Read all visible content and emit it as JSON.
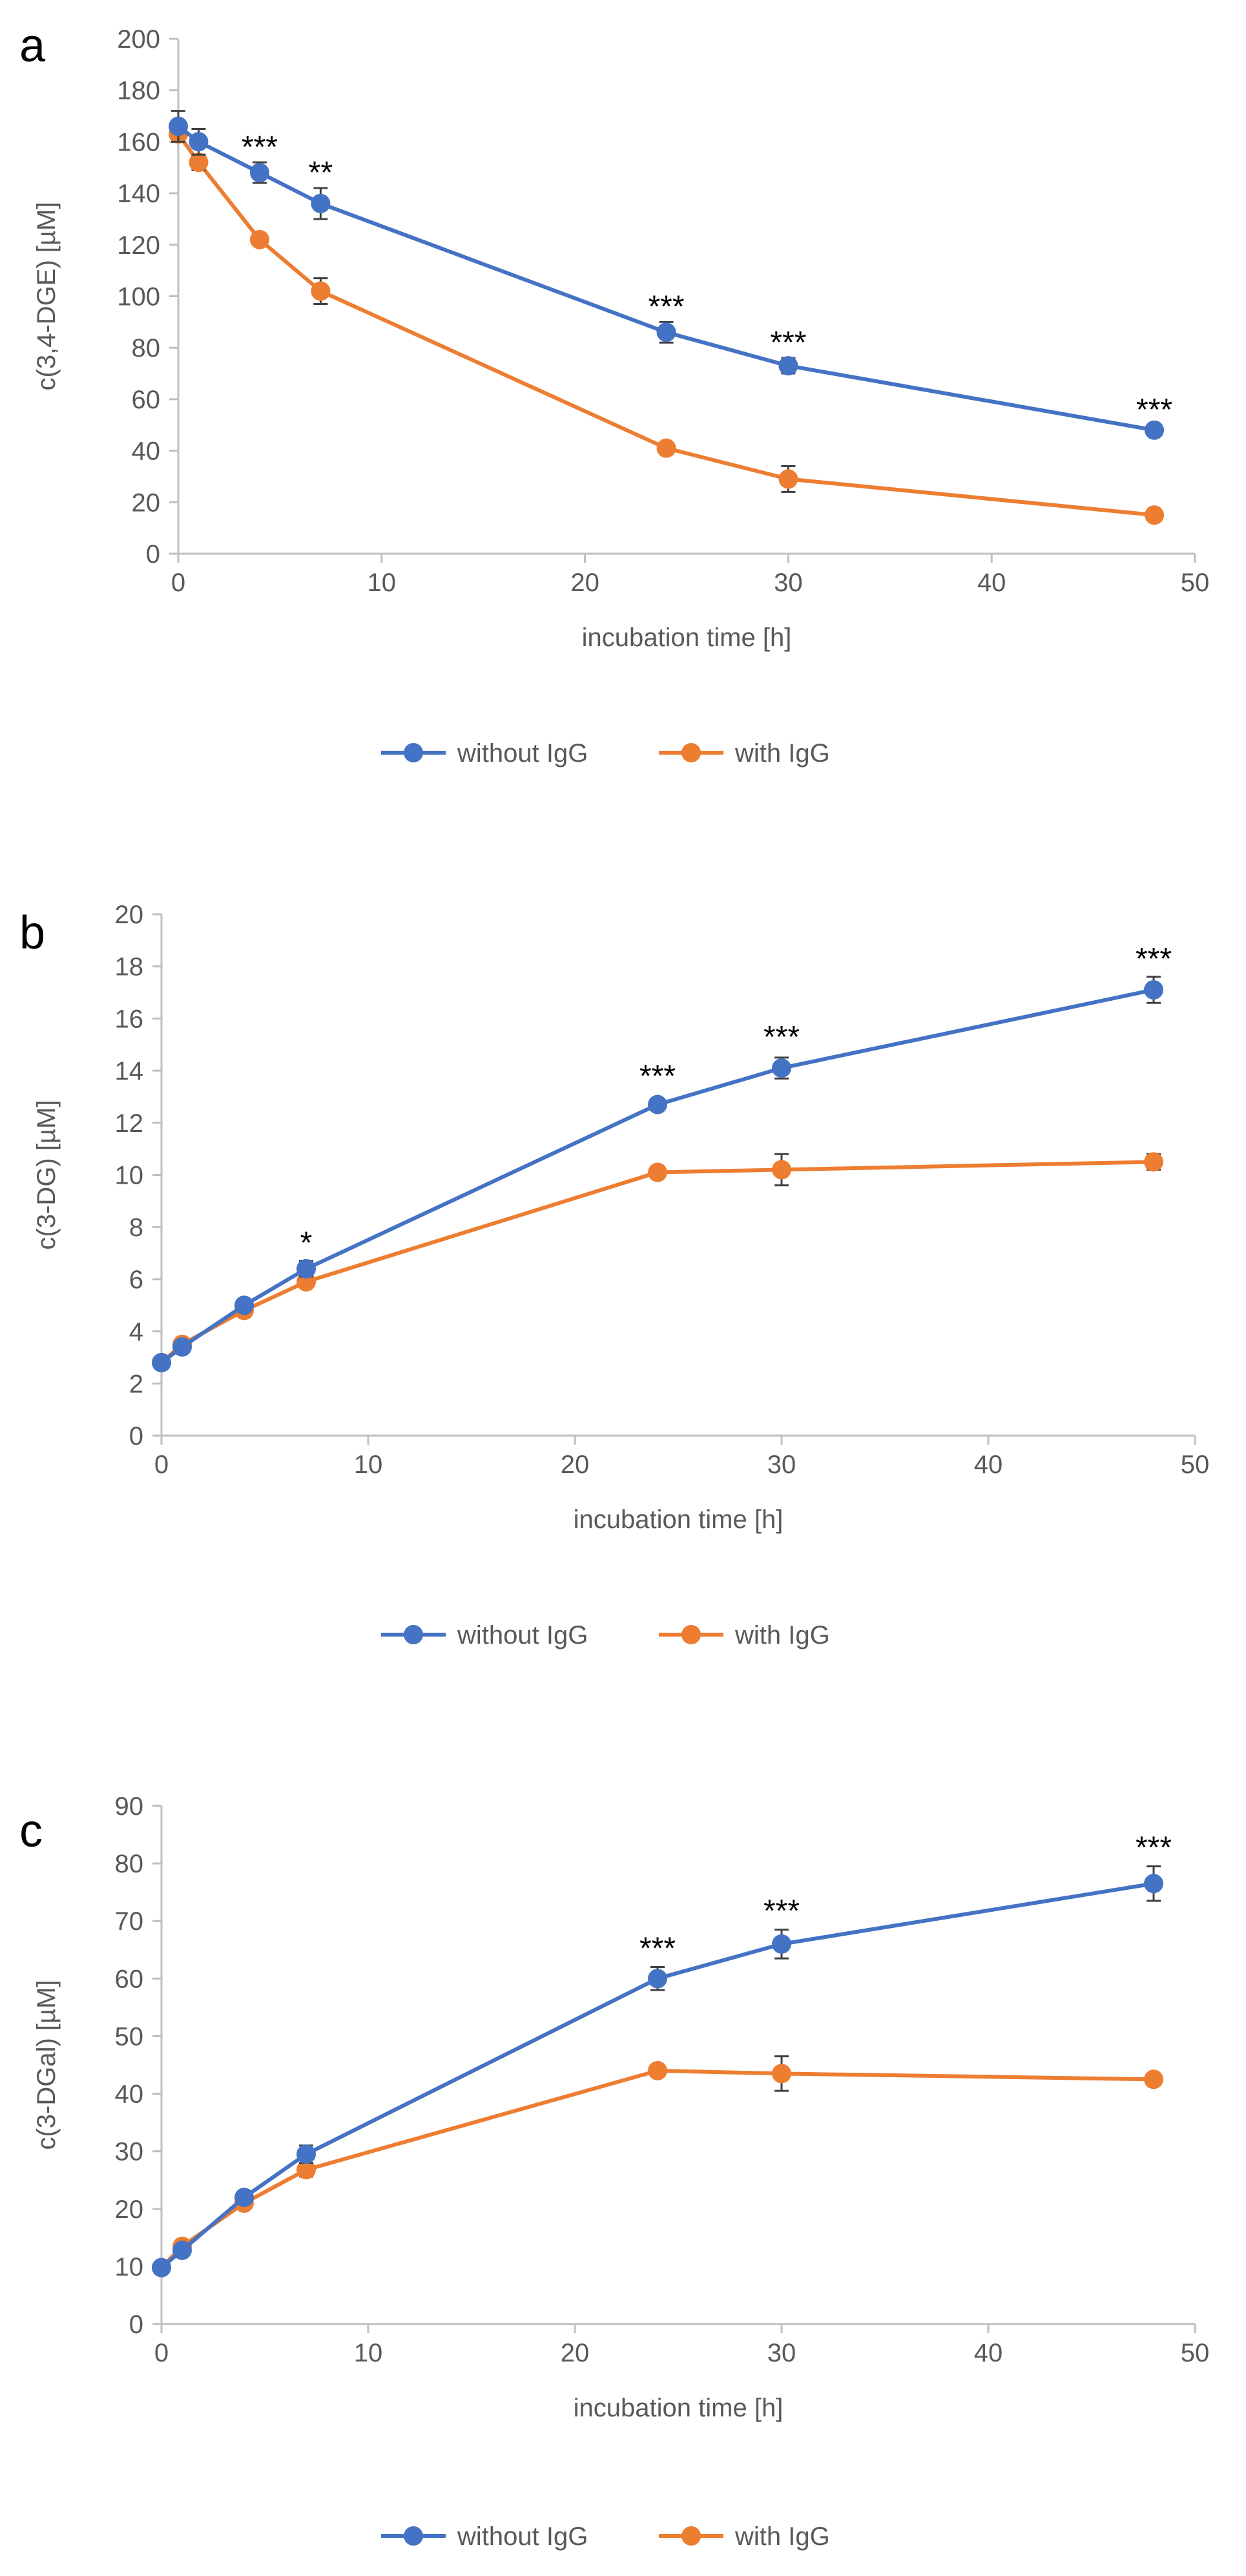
{
  "colors": {
    "without": "#4472C4",
    "with": "#ED7D31",
    "axis": "#BFBFBF",
    "text": "#595959",
    "errbar": "#404040"
  },
  "chart_data": [
    {
      "type": "line",
      "panel_letter": "a",
      "title": "",
      "xlabel": "incubation time [h]",
      "ylabel": "c(3,4-DGE) [µM]",
      "xlim": [
        0,
        50
      ],
      "ylim": [
        0,
        200
      ],
      "xticks": [
        "0",
        "10",
        "20",
        "30",
        "40",
        "50"
      ],
      "yticks": [
        "0",
        "20",
        "40",
        "60",
        "80",
        "100",
        "120",
        "140",
        "160",
        "180",
        "200"
      ],
      "x": [
        0,
        1,
        4,
        7,
        24,
        30,
        48
      ],
      "series": [
        {
          "name": "without IgG",
          "values": [
            166,
            160,
            148,
            136,
            86,
            73,
            48
          ],
          "errors": [
            6,
            5,
            4,
            6,
            4,
            3,
            2
          ]
        },
        {
          "name": "with IgG",
          "values": [
            163,
            152,
            122,
            102,
            41,
            29,
            15
          ],
          "errors": [
            3,
            3,
            2,
            5,
            2,
            5,
            2
          ]
        }
      ],
      "annotations": [
        {
          "x": 4,
          "y": 153,
          "text": "***"
        },
        {
          "x": 7,
          "y": 143,
          "text": "**"
        },
        {
          "x": 24,
          "y": 91,
          "text": "***"
        },
        {
          "x": 30,
          "y": 77,
          "text": "***"
        },
        {
          "x": 48,
          "y": 51,
          "text": "***"
        }
      ],
      "legend_position": "bottom"
    },
    {
      "type": "line",
      "panel_letter": "b",
      "title": "",
      "xlabel": "incubation time [h]",
      "ylabel": "c(3-DG) [µM]",
      "xlim": [
        0,
        50
      ],
      "ylim": [
        0,
        20
      ],
      "xticks": [
        "0",
        "10",
        "20",
        "30",
        "40",
        "50"
      ],
      "yticks": [
        "0",
        "2",
        "4",
        "6",
        "8",
        "10",
        "12",
        "14",
        "16",
        "18",
        "20"
      ],
      "x": [
        0,
        1,
        4,
        7,
        24,
        30,
        48
      ],
      "series": [
        {
          "name": "without IgG",
          "values": [
            2.8,
            3.4,
            5.0,
            6.4,
            12.7,
            14.1,
            17.1
          ],
          "errors": [
            0.1,
            0.2,
            0.2,
            0.3,
            0.2,
            0.4,
            0.5
          ]
        },
        {
          "name": "with IgG",
          "values": [
            2.8,
            3.5,
            4.8,
            5.9,
            10.1,
            10.2,
            10.5
          ],
          "errors": [
            0.1,
            0.2,
            0.2,
            0.2,
            0.2,
            0.6,
            0.3
          ]
        }
      ],
      "annotations": [
        {
          "x": 7,
          "y": 6.9,
          "text": "*"
        },
        {
          "x": 24,
          "y": 13.3,
          "text": "***"
        },
        {
          "x": 30,
          "y": 14.8,
          "text": "***"
        },
        {
          "x": 48,
          "y": 17.8,
          "text": "***"
        }
      ],
      "legend_position": "bottom"
    },
    {
      "type": "line",
      "panel_letter": "c",
      "title": "",
      "xlabel": "incubation time [h]",
      "ylabel": "c(3-DGal) [µM]",
      "xlim": [
        0,
        50
      ],
      "ylim": [
        0,
        90
      ],
      "xticks": [
        "0",
        "10",
        "20",
        "30",
        "40",
        "50"
      ],
      "yticks": [
        "0",
        "10",
        "20",
        "30",
        "40",
        "50",
        "60",
        "70",
        "80",
        "90"
      ],
      "x": [
        0,
        1,
        4,
        7,
        24,
        30,
        48
      ],
      "series": [
        {
          "name": "without IgG",
          "values": [
            9.8,
            12.8,
            22,
            29.5,
            60,
            66,
            76.5
          ],
          "errors": [
            0.5,
            0.8,
            0.8,
            1.5,
            2,
            2.5,
            3
          ]
        },
        {
          "name": "with IgG",
          "values": [
            9.8,
            13.5,
            21,
            26.8,
            44,
            43.5,
            42.5
          ],
          "errors": [
            0.5,
            0.8,
            0.8,
            1.2,
            0.8,
            3,
            1
          ]
        }
      ],
      "annotations": [
        {
          "x": 24,
          "y": 63,
          "text": "***"
        },
        {
          "x": 30,
          "y": 69.5,
          "text": "***"
        },
        {
          "x": 48,
          "y": 80.5,
          "text": "***"
        }
      ],
      "legend_position": "bottom"
    }
  ]
}
